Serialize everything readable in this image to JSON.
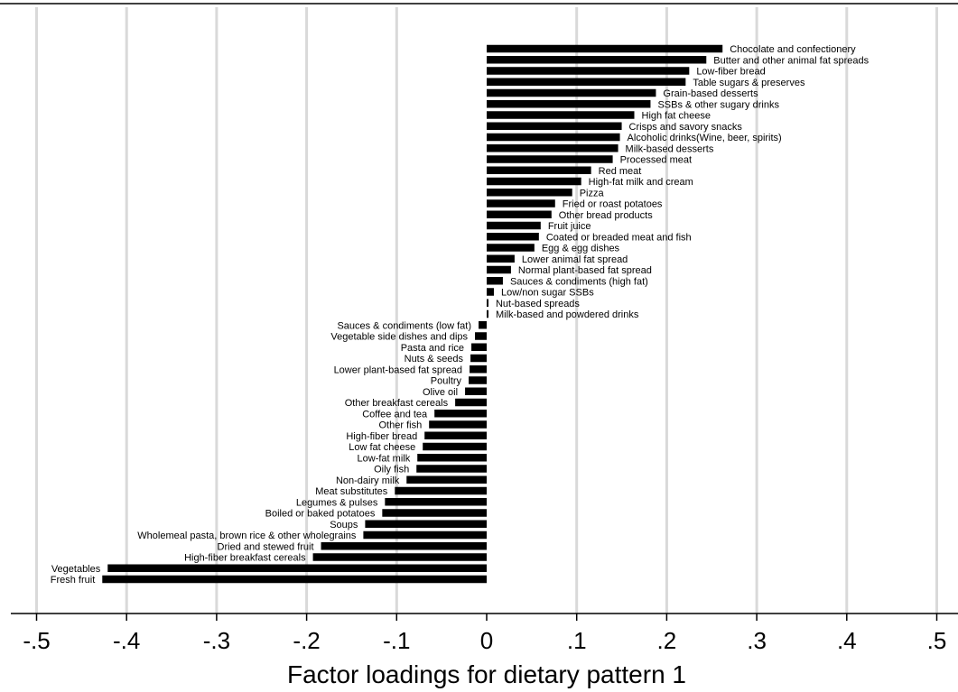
{
  "chart_data": {
    "type": "bar",
    "orientation": "horizontal",
    "title": "",
    "xlabel": "Factor loadings for dietary pattern 1",
    "ylabel": "",
    "xlim": [
      -0.5,
      0.5
    ],
    "x_ticks": [
      -0.5,
      -0.4,
      -0.3,
      -0.2,
      -0.1,
      0,
      0.1,
      0.2,
      0.3,
      0.4,
      0.5
    ],
    "x_tick_labels": [
      "-.5",
      "-.4",
      "-.3",
      "-.2",
      "-.1",
      "0",
      ".1",
      ".2",
      ".3",
      ".4",
      ".5"
    ],
    "grid": "vertical",
    "bar_color": "#000000",
    "grid_color": "#d9d9d9",
    "categories": [
      "Chocolate and confectionery",
      "Butter and other animal fat spreads",
      "Low-fiber bread",
      "Table sugars & preserves",
      "Grain-based desserts",
      "SSBs & other sugary drinks",
      "High fat cheese",
      "Crisps and savory snacks",
      "Alcoholic drinks(Wine, beer, spirits)",
      "Milk-based desserts",
      "Processed meat",
      "Red meat",
      "High-fat milk and cream",
      "Pizza",
      "Fried or roast potatoes",
      "Other bread products",
      "Fruit juice",
      "Coated or breaded meat and fish",
      "Egg & egg dishes",
      "Lower animal fat spread",
      "Normal plant-based fat spread",
      "Sauces & condiments (high fat)",
      "Low/non sugar SSBs",
      "Nut-based spreads",
      "Milk-based and powdered drinks",
      "Sauces & condiments (low fat)",
      "Vegetable side dishes and dips",
      "Pasta and rice",
      "Nuts & seeds",
      "Lower plant-based fat spread",
      "Poultry",
      "Olive oil",
      "Other breakfast cereals",
      "Coffee and tea",
      "Other fish",
      "High-fiber bread",
      "Low fat cheese",
      "Low-fat milk",
      "Oily fish",
      "Non-dairy milk",
      "Meat substitutes",
      "Legumes & pulses",
      "Boiled or baked potatoes",
      "Soups",
      "Wholemeal pasta, brown rice & other wholegrains",
      "Dried and stewed fruit",
      "High-fiber breakfast cereals",
      "Vegetables",
      "Fresh fruit"
    ],
    "values": [
      0.262,
      0.244,
      0.225,
      0.221,
      0.188,
      0.182,
      0.164,
      0.15,
      0.148,
      0.146,
      0.14,
      0.116,
      0.105,
      0.095,
      0.076,
      0.072,
      0.06,
      0.058,
      0.053,
      0.031,
      0.027,
      0.018,
      0.008,
      0.002,
      0.002,
      -0.009,
      -0.013,
      -0.017,
      -0.018,
      -0.019,
      -0.02,
      -0.024,
      -0.035,
      -0.058,
      -0.064,
      -0.069,
      -0.071,
      -0.077,
      -0.078,
      -0.089,
      -0.102,
      -0.113,
      -0.116,
      -0.135,
      -0.137,
      -0.184,
      -0.193,
      -0.421,
      -0.427
    ]
  }
}
